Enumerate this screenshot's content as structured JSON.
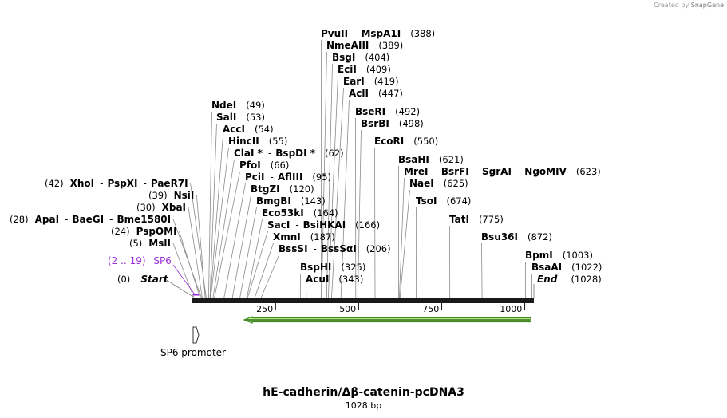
{
  "brand": {
    "created_by": "Created by",
    "name": "SnapGene"
  },
  "title": "hE-cadherin/Δβ-catenin-pcDNA3",
  "length_label": "1028 bp",
  "axis": {
    "ticks": [
      250,
      500,
      750,
      1000
    ],
    "length": 1028
  },
  "feature_promoter": "SP6 promoter",
  "feature_primer": {
    "range": "(2 .. 19)",
    "name": "SP6"
  },
  "start": {
    "pos": "(0)",
    "name": "Start"
  },
  "end": {
    "pos": "(1028)",
    "name": "End"
  },
  "sites": [
    {
      "names": [
        "MslI"
      ],
      "pos": 5,
      "pos_label": "(5)"
    },
    {
      "names": [
        "PspOMI"
      ],
      "pos": 24,
      "pos_label": "(24)"
    },
    {
      "names": [
        "ApaI",
        "BaeGI",
        "Bme1580I"
      ],
      "pos": 28,
      "pos_label": "(28)"
    },
    {
      "names": [
        "XbaI"
      ],
      "pos": 30,
      "pos_label": "(30)"
    },
    {
      "names": [
        "NsiI"
      ],
      "pos": 39,
      "pos_label": "(39)"
    },
    {
      "names": [
        "XhoI",
        "PspXI",
        "PaeR7I"
      ],
      "pos": 42,
      "pos_label": "(42)"
    },
    {
      "names": [
        "NdeI"
      ],
      "pos": 49,
      "pos_label": "(49)"
    },
    {
      "names": [
        "SalI"
      ],
      "pos": 53,
      "pos_label": "(53)"
    },
    {
      "names": [
        "AccI"
      ],
      "pos": 54,
      "pos_label": "(54)"
    },
    {
      "names": [
        "HincII"
      ],
      "pos": 55,
      "pos_label": "(55)"
    },
    {
      "names": [
        "ClaI *",
        "BspDI *"
      ],
      "pos": 62,
      "pos_label": "(62)"
    },
    {
      "names": [
        "PfoI"
      ],
      "pos": 66,
      "pos_label": "(66)"
    },
    {
      "names": [
        "PciI",
        "AflIII"
      ],
      "pos": 95,
      "pos_label": "(95)"
    },
    {
      "names": [
        "BtgZI"
      ],
      "pos": 120,
      "pos_label": "(120)"
    },
    {
      "names": [
        "BmgBI"
      ],
      "pos": 143,
      "pos_label": "(143)"
    },
    {
      "names": [
        "Eco53kI"
      ],
      "pos": 164,
      "pos_label": "(164)"
    },
    {
      "names": [
        "SacI",
        "BsiHKAI"
      ],
      "pos": 166,
      "pos_label": "(166)"
    },
    {
      "names": [
        "XmnI"
      ],
      "pos": 187,
      "pos_label": "(187)"
    },
    {
      "names": [
        "BssSI",
        "BssSαI"
      ],
      "pos": 206,
      "pos_label": "(206)"
    },
    {
      "names": [
        "BspHI"
      ],
      "pos": 325,
      "pos_label": "(325)"
    },
    {
      "names": [
        "AcuI"
      ],
      "pos": 343,
      "pos_label": "(343)"
    },
    {
      "names": [
        "PvuII",
        "MspA1I"
      ],
      "pos": 388,
      "pos_label": "(388)"
    },
    {
      "names": [
        "NmeAIII"
      ],
      "pos": 389,
      "pos_label": "(389)"
    },
    {
      "names": [
        "BsgI"
      ],
      "pos": 404,
      "pos_label": "(404)"
    },
    {
      "names": [
        "EciI"
      ],
      "pos": 409,
      "pos_label": "(409)"
    },
    {
      "names": [
        "EarI"
      ],
      "pos": 419,
      "pos_label": "(419)"
    },
    {
      "names": [
        "AclI"
      ],
      "pos": 447,
      "pos_label": "(447)"
    },
    {
      "names": [
        "BseRI"
      ],
      "pos": 492,
      "pos_label": "(492)"
    },
    {
      "names": [
        "BsrBI"
      ],
      "pos": 498,
      "pos_label": "(498)"
    },
    {
      "names": [
        "EcoRI"
      ],
      "pos": 550,
      "pos_label": "(550)"
    },
    {
      "names": [
        "BsaHI"
      ],
      "pos": 621,
      "pos_label": "(621)"
    },
    {
      "names": [
        "MreI",
        "BsrFI",
        "SgrAI",
        "NgoMIV"
      ],
      "pos": 623,
      "pos_label": "(623)"
    },
    {
      "names": [
        "NaeI"
      ],
      "pos": 625,
      "pos_label": "(625)"
    },
    {
      "names": [
        "TsoI"
      ],
      "pos": 674,
      "pos_label": "(674)"
    },
    {
      "names": [
        "TatI"
      ],
      "pos": 775,
      "pos_label": "(775)"
    },
    {
      "names": [
        "Bsu36I"
      ],
      "pos": 872,
      "pos_label": "(872)"
    },
    {
      "names": [
        "BpmI"
      ],
      "pos": 1003,
      "pos_label": "(1003)"
    },
    {
      "names": [
        "BsaAI"
      ],
      "pos": 1022,
      "pos_label": "(1022)"
    }
  ],
  "colors": {
    "primer": "#9b30d9",
    "cds_fill": "#c6ee9a",
    "cds_stroke": "#3d8c1c"
  }
}
